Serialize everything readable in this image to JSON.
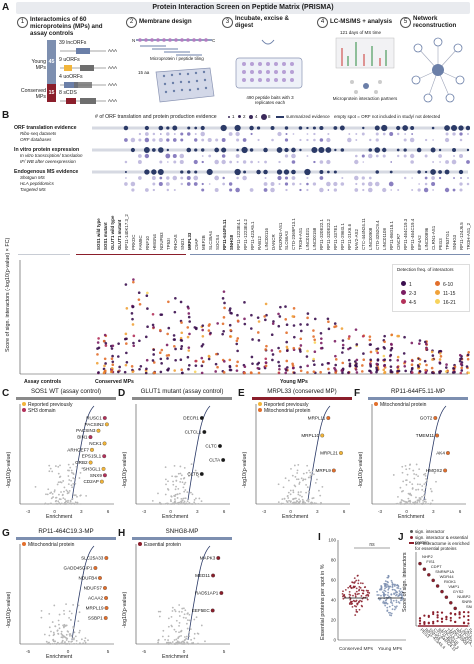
{
  "panel_A": {
    "letter": "A",
    "title": "Protein Interaction Screen on Peptide Matrix (PRISMA)",
    "steps": [
      {
        "num": "1",
        "title": "Interactomics of 60 microproteins (MPs) and assay controls"
      },
      {
        "num": "2",
        "title": "Membrane design"
      },
      {
        "num": "3",
        "title": "Incubate, excise & digest"
      },
      {
        "num": "4",
        "title": "LC-MS/MS + analysis"
      },
      {
        "num": "5",
        "title": "Network reconstruction"
      }
    ],
    "step1": {
      "young_label": "Young MPs",
      "conserved_label": "Conserved MPs",
      "young_count": "45",
      "conserved_count": "15",
      "orf_groups": [
        "39 lncORFs",
        "9 uORFs",
        "4 uoORFs",
        "8 sCDS"
      ],
      "aaa": "AAA"
    },
    "step2": {
      "caption": "Microprotein / peptide tiling",
      "aa_label": "15 aa",
      "n_label": "N",
      "c_label": "C"
    },
    "step3": {
      "caption": "490 peptide baits with 3 replicates each"
    },
    "step4": {
      "caption_top": "121 days of MS time",
      "caption_bottom": "Microprotein interaction partners"
    }
  },
  "panel_B": {
    "letter": "B",
    "legend": {
      "count_label": "# of ORF translation and protein production evidence",
      "sizes": [
        "1",
        "2",
        "4",
        "8"
      ],
      "summarized": "summarized evidence",
      "empty": "empty spot = ORF not included in study/ not detected"
    },
    "evidence_rows": [
      {
        "label": "ORF translation evidence",
        "bold": true
      },
      {
        "label": "Ribo-seq datasets",
        "bold": false
      },
      {
        "label": "ORF databases",
        "bold": false
      },
      {
        "label": "In vitro protein expression",
        "bold": true
      },
      {
        "label": "In vitro transcription/ translation",
        "bold": false
      },
      {
        "label": "IF/ WB after overexpression",
        "bold": false
      },
      {
        "label": "Endogenous MS evidence",
        "bold": true
      },
      {
        "label": "Shotgun MS",
        "bold": false
      },
      {
        "label": "HLA peptidomics",
        "bold": false
      },
      {
        "label": "Targeted MS",
        "bold": false
      }
    ],
    "controls": [
      "SOS1 wild type",
      "SOS1 mutant",
      "GLUT1 wild type",
      "GLUT1 mutant"
    ],
    "conserved_mps": [
      "RP11-140K17.3_2",
      "PRKDC",
      "FAM8C",
      "RNF10",
      "HMGN4",
      "NDUFB3",
      "TP53I",
      "RHOAS",
      "SND1",
      "MRPL33",
      "C9AP",
      "MEF2B",
      "SLC35A4",
      "SOCS4"
    ],
    "young_mps": [
      "RP11-644F5.11",
      "SNHG8",
      "RP11-1223E4.1",
      "RP11-1223E4.2",
      "RP11-423A5.1",
      "RAB12",
      "LINC00116",
      "DANCR",
      "PDZRN3-AS1",
      "SLC66A3",
      "CTD-2369P13.1",
      "TROH-AS1",
      "LINC01021",
      "LINC00158",
      "RP11-320E22.1",
      "RP11-320E22.2",
      "RP11-337E1",
      "RP11-296I3.1",
      "RP11-21K6.6",
      "NAV2-AS2",
      "CTC-444N24.11",
      "LINC00908",
      "CTD-3252C9.4",
      "LINC01108",
      "RP11-86G15.1",
      "CINCR7",
      "RP11-464C19.3",
      "RP11-464C19.4",
      "EIF4A2",
      "LINC00896",
      "CLRN1-AS1",
      "PEG3",
      "TP53TG1",
      "SNHG3",
      "RP11-124J6.5",
      "TROH-AS1_2"
    ],
    "yaxis_label": "Score of sign. interactors (-log10(p-value) × FC)",
    "group_labels": [
      "Assay controls",
      "Conserved MPs",
      "Young MPs"
    ],
    "detection_legend_title": "Detection freq. of interactors",
    "detection_bins": [
      {
        "label": "1",
        "color": "#3b0f4f"
      },
      {
        "label": "6-10",
        "color": "#e26f2c"
      },
      {
        "label": "2-3",
        "color": "#7b1e63"
      },
      {
        "label": "11-15",
        "color": "#f0a23a"
      },
      {
        "label": "4-5",
        "color": "#b3315a"
      },
      {
        "label": "16-21",
        "color": "#f7d35c"
      }
    ]
  },
  "volcano_common": {
    "xlabel": "Enrichment",
    "ylabel": "-log10(p-value)"
  },
  "panel_C": {
    "letter": "C",
    "title": "SOS1 WT (assay control)",
    "legend": [
      "Reported previously",
      "SH3 domain"
    ],
    "genes": [
      "RUSC1",
      "PACSIN2",
      "PACSIN3",
      "BIN1",
      "NCK1",
      "ARHGEF7",
      "EPS15L1",
      "GRB2",
      "SH3GL1",
      "SNX9",
      "CD2AP"
    ],
    "xticks": [
      "-3",
      "0",
      "3",
      "6"
    ]
  },
  "panel_D": {
    "letter": "D",
    "title": "GLUT1 mutant (assay control)",
    "genes": [
      "DECR1",
      "CLTCL1",
      "CLTC",
      "CLTA",
      "CLTB"
    ],
    "xticks": [
      "-3",
      "0",
      "3",
      "6"
    ]
  },
  "panel_E": {
    "letter": "E",
    "title": "MRPL33 (conserved MP)",
    "legend": [
      "Reported previously",
      "Mitochondrial protein"
    ],
    "genes": [
      "MRPL11",
      "MRPL10",
      "MRPL21",
      "MRPL9"
    ],
    "xticks": [
      "-3",
      "0",
      "3",
      "6"
    ]
  },
  "panel_F": {
    "letter": "F",
    "title": "RP11-644F5.11-MP",
    "legend": [
      "Mitochondrial protein"
    ],
    "genes": [
      "GOT2",
      "TMEM11",
      "AK4",
      "HMOX2"
    ],
    "xticks": [
      "-3",
      "0",
      "3",
      "6"
    ]
  },
  "panel_G": {
    "letter": "G",
    "title": "RP11-464C19.3-MP",
    "legend": [
      "Mitochondrial protein"
    ],
    "genes": [
      "SLC25A33",
      "GADD45GIP1",
      "NDUFB4",
      "NDUFS7",
      "ACAA2",
      "MRPL19",
      "SSBP1"
    ],
    "xticks": [
      "-5",
      "0",
      "5"
    ]
  },
  "panel_H": {
    "letter": "H",
    "title": "SNHG8-MP",
    "legend": [
      "Essential protein"
    ],
    "genes": [
      "MAPK3",
      "MED11",
      "RAD51AP1",
      "EEF5EC"
    ],
    "xticks": [
      "-5",
      "0",
      "5"
    ]
  },
  "panel_I": {
    "letter": "I",
    "ylabel": "Essential proteins per spot in %",
    "categories": [
      "Conserved MPs",
      "Young MPs"
    ],
    "ns": "ns",
    "yticks": [
      "0",
      "20",
      "40",
      "60",
      "80",
      "100"
    ]
  },
  "panel_J": {
    "letter": "J",
    "legend": [
      "sign. interactor",
      "sign. interactor & essential protein",
      "MP interactome is enriched for essential proteins"
    ],
    "ylabel": "Score of sign. interactors",
    "genes": [
      "NHP2",
      "FIS1",
      "CDPT",
      "SNRNP1A",
      "WDR44",
      "RIOK1",
      "VMP1",
      "GYS2",
      "NUBP2",
      "SNRNP40",
      "SNRP8"
    ],
    "categories": [
      "PEG3",
      "RP11-423A5.4",
      "SNHG8",
      "CTC-444N24.11",
      "RP11-463C9.3",
      "LINC00116",
      "TMT1.7",
      "LINC00908",
      "RP11-421A.2",
      "LINC00306",
      "CAT1",
      "FARL"
    ]
  }
}
